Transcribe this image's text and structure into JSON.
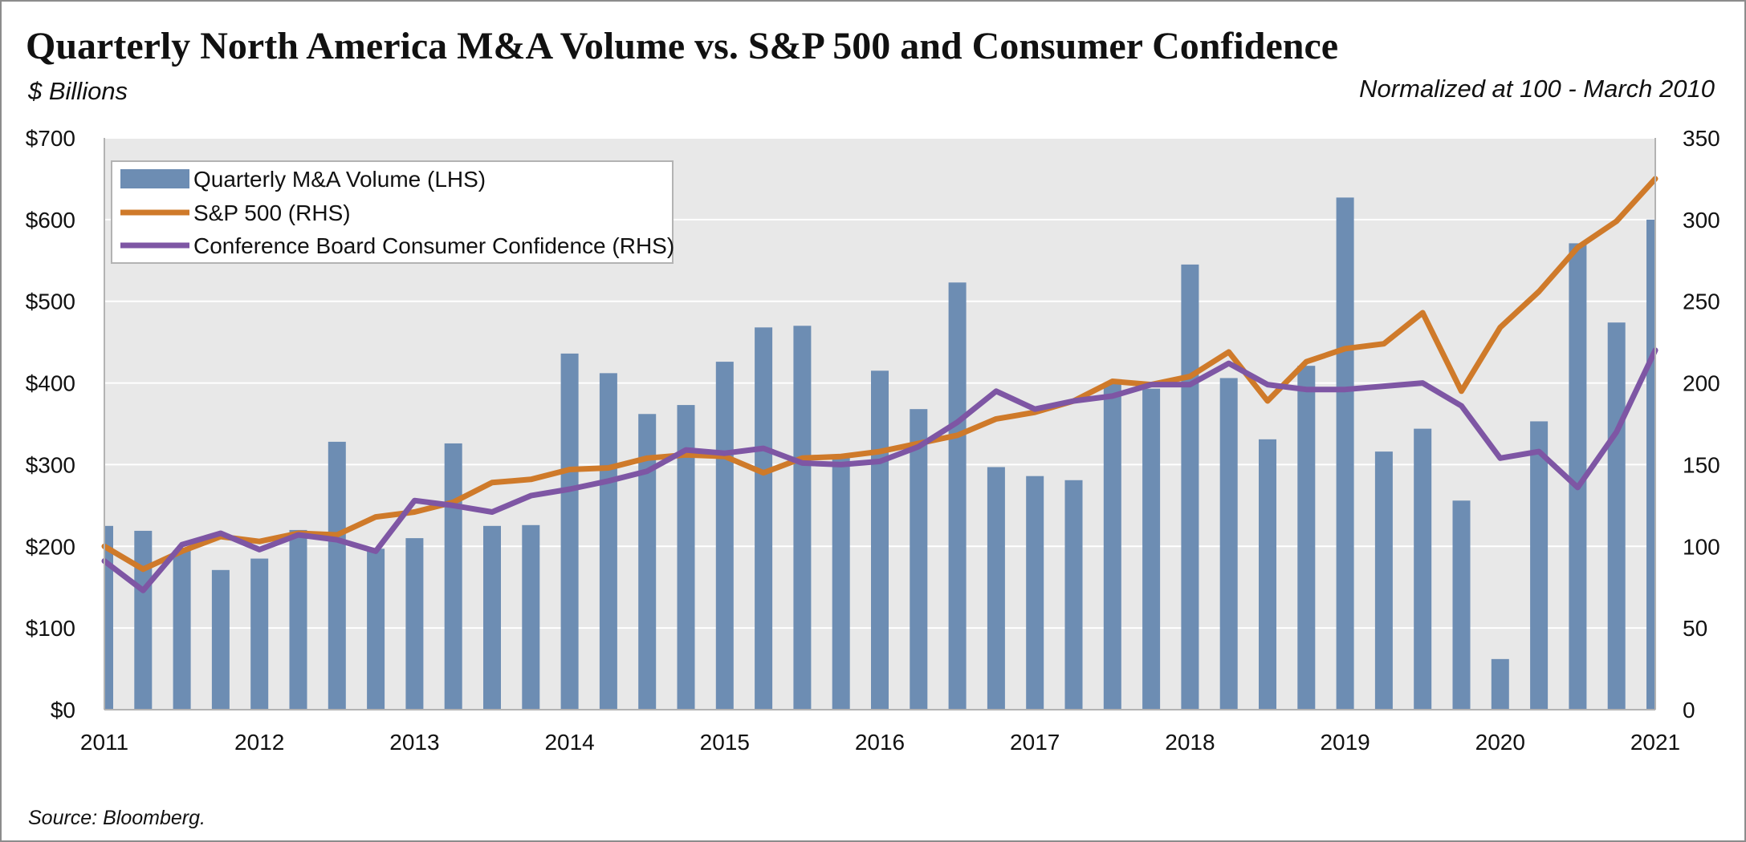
{
  "title": "Quarterly North America M&A Volume vs. S&P 500 and Consumer Confidence",
  "subtitle_left": "$ Billions",
  "subtitle_right": "Normalized at 100 - March 2010",
  "source": "Source: Bloomberg.",
  "chart_data": {
    "type": "bar",
    "x_tick_labels": [
      "2011",
      "2012",
      "2013",
      "2014",
      "2015",
      "2016",
      "2017",
      "2018",
      "2019",
      "2020",
      "2021"
    ],
    "left_axis": {
      "range": [
        0,
        700
      ],
      "tick_values": [
        0,
        100,
        200,
        300,
        400,
        500,
        600,
        700
      ],
      "tick_labels": [
        "$0",
        "$100",
        "$200",
        "$300",
        "$400",
        "$500",
        "$600",
        "$700"
      ]
    },
    "right_axis": {
      "range": [
        0,
        350
      ],
      "tick_values": [
        0,
        50,
        100,
        150,
        200,
        250,
        300,
        350
      ],
      "tick_labels": [
        "0",
        "50",
        "100",
        "150",
        "200",
        "250",
        "300",
        "350"
      ]
    },
    "grid": "horizontal",
    "legend_position": "top-left",
    "quarters": [
      "Q1 2011",
      "Q2 2011",
      "Q3 2011",
      "Q4 2011",
      "Q1 2012",
      "Q2 2012",
      "Q3 2012",
      "Q4 2012",
      "Q1 2013",
      "Q2 2013",
      "Q3 2013",
      "Q4 2013",
      "Q1 2014",
      "Q2 2014",
      "Q3 2014",
      "Q4 2014",
      "Q1 2015",
      "Q2 2015",
      "Q3 2015",
      "Q4 2015",
      "Q1 2016",
      "Q2 2016",
      "Q3 2016",
      "Q4 2016",
      "Q1 2017",
      "Q2 2017",
      "Q3 2017",
      "Q4 2017",
      "Q1 2018",
      "Q2 2018",
      "Q3 2018",
      "Q4 2018",
      "Q1 2019",
      "Q2 2019",
      "Q3 2019",
      "Q4 2019",
      "Q1 2020",
      "Q2 2020",
      "Q3 2020",
      "Q4 2020",
      "Q1 2021"
    ],
    "series": [
      {
        "name": "Quarterly M&A Volume (LHS)",
        "kind": "bar",
        "axis": "left",
        "color": "#6d8db3",
        "values": [
          225,
          219,
          195,
          171,
          185,
          220,
          328,
          197,
          210,
          326,
          225,
          226,
          436,
          412,
          362,
          373,
          426,
          468,
          470,
          312,
          415,
          368,
          523,
          297,
          286,
          281,
          400,
          393,
          545,
          406,
          331,
          421,
          627,
          316,
          344,
          256,
          62,
          353,
          571,
          474,
          600
        ]
      },
      {
        "name": "S&P 500 (RHS)",
        "kind": "line",
        "axis": "right",
        "color": "#cf7a2a",
        "values": [
          100,
          86,
          97,
          106,
          103,
          108,
          107,
          118,
          121,
          127,
          139,
          141,
          147,
          148,
          154,
          156,
          155,
          145,
          154,
          155,
          158,
          163,
          168,
          178,
          182,
          189,
          201,
          199,
          204,
          219,
          189,
          213,
          221,
          224,
          243,
          195,
          234,
          256,
          283,
          299,
          325
        ]
      },
      {
        "name": "Conference Board Consumer Confidence (RHS)",
        "kind": "line",
        "axis": "right",
        "color": "#7e56a4",
        "values": [
          91,
          73,
          101,
          108,
          98,
          107,
          104,
          97,
          128,
          125,
          121,
          131,
          135,
          140,
          146,
          159,
          157,
          160,
          151,
          150,
          152,
          161,
          176,
          195,
          184,
          189,
          192,
          199,
          199,
          212,
          199,
          196,
          196,
          198,
          200,
          186,
          154,
          158,
          136,
          170,
          220
        ]
      }
    ]
  }
}
